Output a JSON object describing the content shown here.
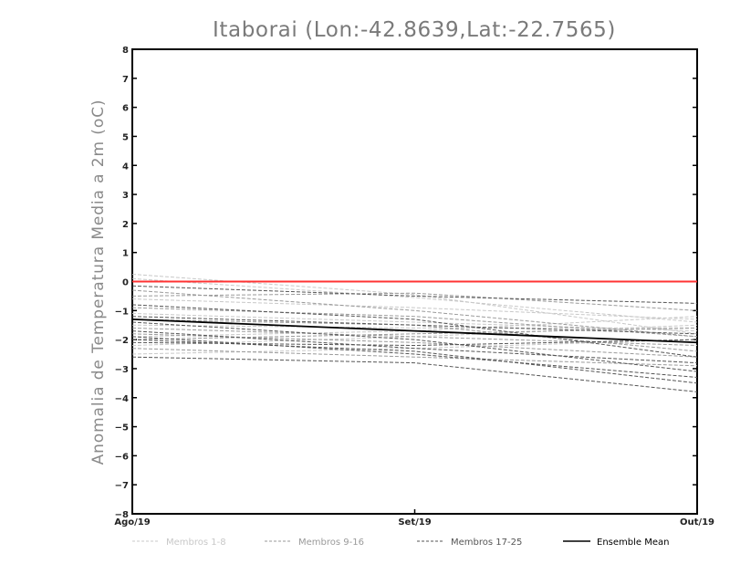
{
  "chart_data": {
    "type": "line",
    "title": "Itaborai (Lon:-42.8639,Lat:-22.7565)",
    "ylabel": "Anomalia de Temperatura Media a 2m (oC)",
    "xlabel": "",
    "categories": [
      "Ago/19",
      "Set/19",
      "Out/19"
    ],
    "ylim": [
      -8,
      8
    ],
    "yticks": [
      "8",
      "7",
      "6",
      "5",
      "4",
      "3",
      "2",
      "1",
      "0",
      "-1",
      "-2",
      "-3",
      "-4",
      "-5",
      "-6",
      "-7",
      "-8"
    ],
    "grid": false,
    "reference_line": {
      "value": 0,
      "color": "#ff3333"
    },
    "legend": {
      "placement": "bottom",
      "entries": [
        {
          "label": "Membros 1-8",
          "color": "#c8c8c8",
          "dash": "dashed"
        },
        {
          "label": "Membros 9-16",
          "color": "#9a9a9a",
          "dash": "dashed"
        },
        {
          "label": "Membros 17-25",
          "color": "#555555",
          "dash": "dashed"
        },
        {
          "label": "Ensemble Mean",
          "color": "#000000",
          "dash": "solid"
        }
      ]
    },
    "series": [
      {
        "group": 0,
        "values": [
          0.25,
          -0.45,
          -1.8
        ]
      },
      {
        "group": 0,
        "values": [
          0.1,
          -0.55,
          -1.4
        ]
      },
      {
        "group": 0,
        "values": [
          -0.6,
          -0.9,
          -1.3
        ]
      },
      {
        "group": 0,
        "values": [
          -1.1,
          -1.4,
          -1.7
        ]
      },
      {
        "group": 0,
        "values": [
          -1.9,
          -1.7,
          -1.2
        ]
      },
      {
        "group": 0,
        "values": [
          -2.2,
          -1.9,
          -1.5
        ]
      },
      {
        "group": 0,
        "values": [
          -2.5,
          -2.3,
          -2.0
        ]
      },
      {
        "group": 0,
        "values": [
          -1.5,
          -1.6,
          -1.6
        ]
      },
      {
        "group": 1,
        "values": [
          -0.3,
          -1.0,
          -1.9
        ]
      },
      {
        "group": 1,
        "values": [
          -0.5,
          -0.4,
          -1.0
        ]
      },
      {
        "group": 1,
        "values": [
          -1.3,
          -1.5,
          -2.4
        ]
      },
      {
        "group": 1,
        "values": [
          -1.6,
          -1.9,
          -2.2
        ]
      },
      {
        "group": 1,
        "values": [
          -1.8,
          -2.1,
          -2.6
        ]
      },
      {
        "group": 1,
        "values": [
          -2.0,
          -1.8,
          -1.6
        ]
      },
      {
        "group": 1,
        "values": [
          -2.3,
          -2.6,
          -2.9
        ]
      },
      {
        "group": 1,
        "values": [
          -0.9,
          -1.2,
          -1.9
        ]
      },
      {
        "group": 2,
        "values": [
          -0.15,
          -0.5,
          -0.75
        ]
      },
      {
        "group": 2,
        "values": [
          -0.8,
          -1.3,
          -2.6
        ]
      },
      {
        "group": 2,
        "values": [
          -1.2,
          -1.5,
          -1.8
        ]
      },
      {
        "group": 2,
        "values": [
          -1.4,
          -2.0,
          -3.1
        ]
      },
      {
        "group": 2,
        "values": [
          -1.7,
          -2.3,
          -2.8
        ]
      },
      {
        "group": 2,
        "values": [
          -1.9,
          -2.5,
          -3.3
        ]
      },
      {
        "group": 2,
        "values": [
          -2.0,
          -2.4,
          -3.5
        ]
      },
      {
        "group": 2,
        "values": [
          -2.6,
          -2.8,
          -3.8
        ]
      },
      {
        "group": 2,
        "values": [
          -2.1,
          -2.2,
          -2.0
        ]
      },
      {
        "group": 3,
        "values": [
          -1.3,
          -1.7,
          -2.1
        ]
      }
    ]
  }
}
